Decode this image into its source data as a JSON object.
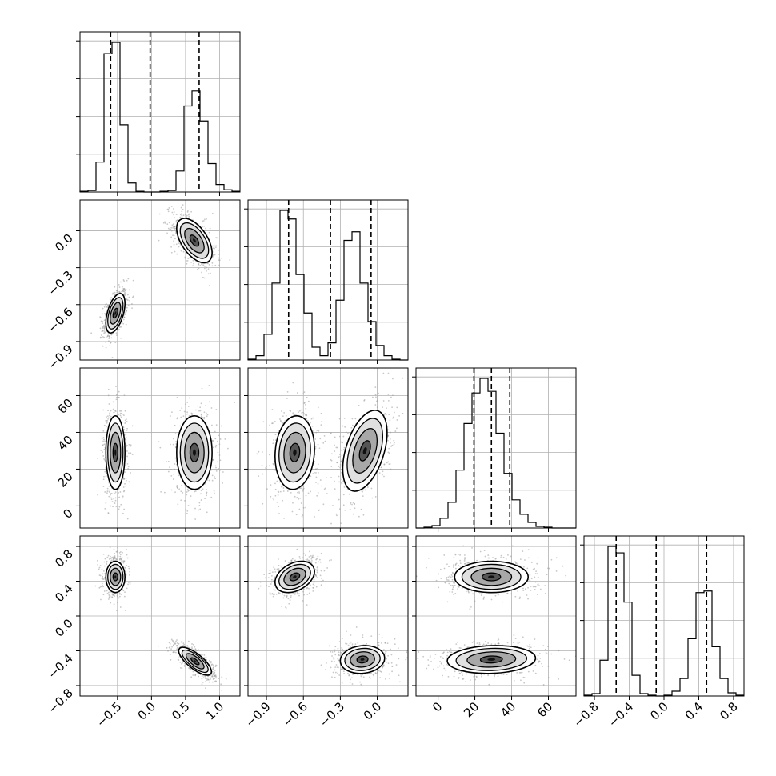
{
  "chart_data": {
    "type": "corner",
    "grid": true,
    "quantiles_note": "",
    "params": [
      {
        "xlim": [
          -1.05,
          1.3
        ],
        "ticks": [
          -0.5,
          0.0,
          0.5,
          1.0
        ],
        "tick_labels": [
          "−0.5",
          "0.0",
          "0.5",
          "1.0"
        ],
        "quantile_lines": [
          -0.6,
          -0.02,
          0.7
        ]
      },
      {
        "xlim": [
          -1.05,
          0.25
        ],
        "ticks": [
          -0.9,
          -0.6,
          -0.3,
          0.0
        ],
        "tick_labels": [
          "−0.9",
          "−0.6",
          "−0.3",
          "0.0"
        ],
        "quantile_lines": [
          -0.72,
          -0.38,
          -0.05
        ]
      },
      {
        "xlim": [
          -12,
          75
        ],
        "ticks": [
          0,
          20,
          40,
          60
        ],
        "tick_labels": [
          "0",
          "20",
          "40",
          "60"
        ],
        "quantile_lines": [
          19.5,
          29,
          39
        ]
      },
      {
        "xlim": [
          -0.92,
          0.92
        ],
        "ticks": [
          -0.8,
          -0.4,
          0.0,
          0.4,
          0.8
        ],
        "tick_labels": [
          "−0.8",
          "−0.4",
          "0.0",
          "0.4",
          "0.8"
        ],
        "quantile_lines": [
          -0.55,
          -0.09,
          0.49
        ]
      }
    ],
    "histograms": [
      {
        "param": 0,
        "bins": 20,
        "values": [
          1,
          2,
          40,
          185,
          200,
          90,
          12,
          1,
          0,
          0,
          1,
          2,
          28,
          115,
          135,
          95,
          38,
          10,
          3,
          1
        ]
      },
      {
        "param": 1,
        "bins": 20,
        "values": [
          1,
          5,
          30,
          90,
          175,
          165,
          100,
          55,
          15,
          5,
          20,
          70,
          140,
          150,
          90,
          45,
          17,
          5,
          1,
          0
        ]
      },
      {
        "param": 2,
        "bins": 20,
        "values": [
          0,
          1,
          3,
          12,
          32,
          72,
          130,
          168,
          186,
          170,
          118,
          68,
          35,
          17,
          7,
          2,
          1,
          0,
          0,
          0
        ]
      },
      {
        "param": 3,
        "bins": 20,
        "values": [
          1,
          3,
          45,
          188,
          180,
          118,
          26,
          3,
          1,
          0,
          1,
          6,
          22,
          72,
          130,
          132,
          62,
          22,
          4,
          1
        ]
      }
    ],
    "pairs": [
      {
        "x": 0,
        "y": 1,
        "clusters": [
          {
            "mx": -0.53,
            "my": -0.67,
            "sx": 0.07,
            "sy": 0.08,
            "corr": 0.5
          },
          {
            "mx": 0.63,
            "my": -0.08,
            "sx": 0.13,
            "sy": 0.09,
            "corr": -0.55
          }
        ]
      },
      {
        "x": 0,
        "y": 2,
        "clusters": [
          {
            "mx": -0.53,
            "my": 29,
            "sx": 0.07,
            "sy": 10,
            "corr": 0
          },
          {
            "mx": 0.63,
            "my": 29,
            "sx": 0.13,
            "sy": 10,
            "corr": 0
          }
        ]
      },
      {
        "x": 0,
        "y": 3,
        "clusters": [
          {
            "mx": -0.53,
            "my": 0.45,
            "sx": 0.07,
            "sy": 0.09,
            "corr": 0
          },
          {
            "mx": 0.64,
            "my": -0.52,
            "sx": 0.12,
            "sy": 0.08,
            "corr": -0.75
          }
        ]
      },
      {
        "x": 1,
        "y": 2,
        "clusters": [
          {
            "mx": -0.67,
            "my": 29,
            "sx": 0.08,
            "sy": 10,
            "corr": 0.1
          },
          {
            "mx": -0.1,
            "my": 30,
            "sx": 0.09,
            "sy": 11,
            "corr": 0.45
          }
        ]
      },
      {
        "x": 1,
        "y": 3,
        "clusters": [
          {
            "mx": -0.67,
            "my": 0.45,
            "sx": 0.08,
            "sy": 0.09,
            "corr": 0.35
          },
          {
            "mx": -0.12,
            "my": -0.5,
            "sx": 0.09,
            "sy": 0.08,
            "corr": 0.1
          }
        ]
      },
      {
        "x": 2,
        "y": 3,
        "clusters": [
          {
            "mx": 29,
            "my": 0.45,
            "sx": 10,
            "sy": 0.09,
            "corr": 0
          },
          {
            "mx": 29,
            "my": -0.5,
            "sx": 12,
            "sy": 0.08,
            "corr": 0.1
          }
        ]
      }
    ]
  }
}
